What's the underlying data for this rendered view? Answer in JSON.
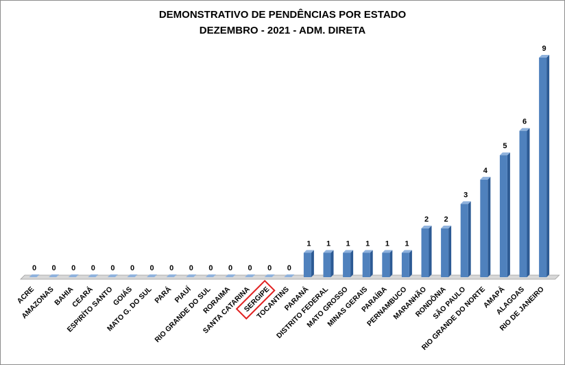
{
  "chart_data": {
    "type": "bar",
    "title": "DEMONSTRATIVO DE PENDÊNCIAS POR ESTADO",
    "subtitle": "DEZEMBRO - 2021 - ADM. DIRETA",
    "categories": [
      "ACRE",
      "AMAZONAS",
      "BAHIA",
      "CEARÁ",
      "ESPIRÍTO SANTO",
      "GOIÁS",
      "MATO G. DO SUL",
      "PARÁ",
      "PIAUÍ",
      "RIO GRANDE DO SUL",
      "RORAIMA",
      "SANTA CATARINA",
      "SERGIPE",
      "TOCANTINS",
      "PARANÁ",
      "DISTRITO FEDERAL",
      "MATO GROSSO",
      "MINAS GERAIS",
      "PARAÍBA",
      "PERNAMBUCO",
      "MARANHÃO",
      "RONDÔNIA",
      "SÃO PAULO",
      "RIO GRANDE DO NORTE",
      "AMAPÁ",
      "ALAGOAS",
      "RIO DE JANEIRO"
    ],
    "values": [
      0,
      0,
      0,
      0,
      0,
      0,
      0,
      0,
      0,
      0,
      0,
      0,
      0,
      0,
      1,
      1,
      1,
      1,
      1,
      1,
      2,
      2,
      3,
      4,
      5,
      6,
      9
    ],
    "ylim": [
      0,
      9
    ],
    "grid": false,
    "legend": "none",
    "data_labels": true,
    "highlighted_category": "SERGIPE",
    "colors": {
      "bar_front": "#4f81bd",
      "bar_side": "#2c5a94",
      "bar_top": "#8fb2dd",
      "highlight_box": "#e02020",
      "floor": "#d8d8d8"
    }
  }
}
